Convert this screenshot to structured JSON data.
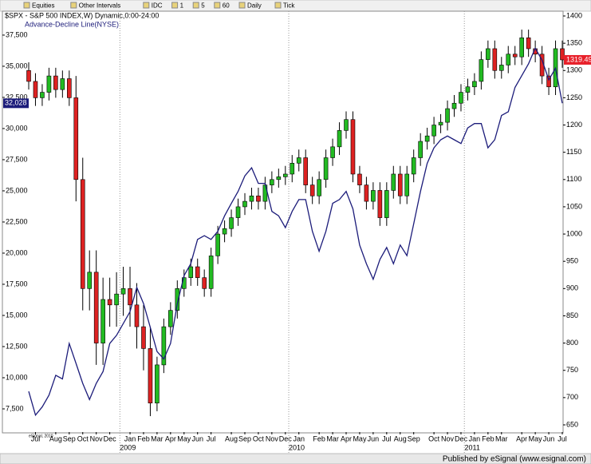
{
  "toolbar": {
    "items": [
      "Equities",
      "Other Intervals",
      "IDC",
      "1",
      "5",
      "60",
      "Daily",
      "Tick"
    ]
  },
  "footer": "Published by eSignal (www.esignal.com)",
  "watermark": "eSignal, 2010",
  "chart_data": {
    "type": "candlestick",
    "title": "$SPX - S&P 500 INDEX,W) Dynamic,0:00-24:00",
    "subtitle": "Advance-Decline Line(NYSE)",
    "categories": [
      null,
      "Jul",
      null,
      null,
      "Aug",
      null,
      "Sep",
      null,
      "Oct",
      null,
      "Nov",
      null,
      "Dec",
      null,
      null,
      "Jan",
      null,
      "Feb",
      null,
      "Mar",
      null,
      "Apr",
      null,
      "May",
      null,
      "Jun",
      null,
      "Jul",
      null,
      null,
      "Aug",
      null,
      "Sep",
      null,
      "Oct",
      null,
      "Nov",
      null,
      "Dec",
      null,
      "Jan",
      null,
      null,
      "Feb",
      null,
      "Mar",
      null,
      "Apr",
      null,
      "May",
      null,
      "Jun",
      null,
      "Jul",
      null,
      "Aug",
      null,
      "Sep",
      null,
      null,
      "Oct",
      null,
      "Nov",
      null,
      "Dec",
      null,
      "Jan",
      null,
      "Feb",
      null,
      "Mar",
      null,
      null,
      "Apr",
      null,
      "May",
      null,
      "Jun",
      null,
      "Jul"
    ],
    "years": [
      "2009",
      "2010",
      "2011"
    ],
    "ylim": [
      5640,
      39420
    ],
    "yticks": [
      {
        "value": 7500,
        "label": "7,500"
      },
      {
        "value": 10000,
        "label": "10,000"
      },
      {
        "value": 12500,
        "label": "12,500"
      },
      {
        "value": 15000,
        "label": "15,000"
      },
      {
        "value": 17500,
        "label": "17,500"
      },
      {
        "value": 20000,
        "label": "20,000"
      },
      {
        "value": 22500,
        "label": "22,500"
      },
      {
        "value": 25000,
        "label": "25,000"
      },
      {
        "value": 27500,
        "label": "27,500"
      },
      {
        "value": 30000,
        "label": "30,000"
      },
      {
        "value": 32500,
        "label": "32,500"
      },
      {
        "value": 35000,
        "label": "35,000"
      },
      {
        "value": 37500,
        "label": "37,500"
      }
    ],
    "y2lim": [
      636.8,
      1408.8
    ],
    "y2ticks": [
      650,
      700,
      750,
      800,
      850,
      900,
      950,
      1000,
      1050,
      1100,
      1150,
      1200,
      1250,
      1300,
      1350,
      1400
    ],
    "grid": false,
    "series": [
      {
        "name": "$SPX",
        "axis": "y2",
        "up_color": "#22bb22",
        "down_color": "#dd2222",
        "last_color": "#e8202a",
        "open": [
          1300,
          1280,
          1250,
          1260,
          1290,
          1265,
          1285,
          1250,
          1100,
          900,
          930,
          800,
          880,
          870,
          890,
          900,
          870,
          830,
          790,
          690,
          760,
          830,
          860,
          900,
          920,
          940,
          920,
          900,
          960,
          1000,
          1010,
          1030,
          1050,
          1060,
          1070,
          1060,
          1090,
          1100,
          1105,
          1110,
          1130,
          1140,
          1090,
          1070,
          1100,
          1140,
          1160,
          1190,
          1210,
          1110,
          1090,
          1060,
          1080,
          1030,
          1080,
          1110,
          1070,
          1110,
          1140,
          1170,
          1180,
          1200,
          1205,
          1230,
          1240,
          1260,
          1270,
          1280,
          1320,
          1340,
          1300,
          1310,
          1330,
          1325,
          1360,
          1340,
          1330,
          1290,
          1270,
          1340
        ],
        "high": [
          1315,
          1295,
          1275,
          1305,
          1305,
          1300,
          1300,
          1290,
          1140,
          970,
          970,
          920,
          920,
          930,
          940,
          940,
          910,
          870,
          830,
          775,
          845,
          875,
          915,
          935,
          955,
          955,
          935,
          975,
          1015,
          1025,
          1045,
          1065,
          1075,
          1085,
          1085,
          1105,
          1115,
          1120,
          1125,
          1145,
          1155,
          1155,
          1105,
          1115,
          1155,
          1175,
          1205,
          1225,
          1225,
          1125,
          1105,
          1095,
          1095,
          1095,
          1125,
          1125,
          1125,
          1155,
          1185,
          1195,
          1215,
          1220,
          1245,
          1255,
          1275,
          1285,
          1295,
          1335,
          1355,
          1355,
          1325,
          1345,
          1345,
          1375,
          1375,
          1355,
          1345,
          1305,
          1355,
          1355
        ],
        "low": [
          1265,
          1235,
          1235,
          1245,
          1250,
          1250,
          1235,
          1060,
          860,
          860,
          760,
          760,
          830,
          830,
          850,
          830,
          790,
          750,
          666,
          675,
          745,
          815,
          845,
          885,
          905,
          905,
          885,
          885,
          945,
          985,
          995,
          1015,
          1035,
          1045,
          1045,
          1045,
          1075,
          1085,
          1090,
          1095,
          1115,
          1075,
          1055,
          1055,
          1085,
          1125,
          1145,
          1175,
          1095,
          1075,
          1045,
          1045,
          1015,
          1015,
          1065,
          1055,
          1055,
          1095,
          1125,
          1155,
          1165,
          1185,
          1190,
          1215,
          1225,
          1245,
          1255,
          1265,
          1305,
          1285,
          1285,
          1295,
          1310,
          1310,
          1325,
          1315,
          1275,
          1255,
          1255,
          1305
        ],
        "close": [
          1280,
          1250,
          1260,
          1290,
          1265,
          1285,
          1250,
          1100,
          900,
          930,
          800,
          880,
          870,
          890,
          900,
          870,
          830,
          790,
          690,
          760,
          830,
          860,
          900,
          920,
          940,
          920,
          900,
          960,
          1000,
          1010,
          1030,
          1050,
          1060,
          1070,
          1060,
          1090,
          1100,
          1105,
          1110,
          1130,
          1140,
          1090,
          1070,
          1100,
          1140,
          1160,
          1190,
          1210,
          1110,
          1090,
          1060,
          1080,
          1030,
          1080,
          1110,
          1070,
          1110,
          1140,
          1170,
          1180,
          1200,
          1205,
          1230,
          1240,
          1260,
          1270,
          1280,
          1320,
          1340,
          1300,
          1310,
          1330,
          1325,
          1360,
          1340,
          1330,
          1290,
          1270,
          1340,
          1319.49
        ]
      },
      {
        "name": "Advance-Decline Line(NYSE)",
        "type": "line",
        "axis": "y",
        "color": "#1c1c7a",
        "values": [
          8900,
          7000,
          7650,
          8600,
          10200,
          9900,
          12750,
          11150,
          9550,
          8250,
          9550,
          10500,
          12750,
          13400,
          14350,
          15300,
          17250,
          15950,
          14050,
          12100,
          11500,
          12750,
          15950,
          18200,
          19150,
          21100,
          21400,
          21100,
          21750,
          23000,
          24000,
          24950,
          26200,
          26850,
          25600,
          25600,
          23350,
          23000,
          22050,
          23350,
          24300,
          24300,
          21750,
          20150,
          21750,
          24000,
          24300,
          24950,
          23550,
          20650,
          19150,
          17900,
          19500,
          20450,
          19150,
          20650,
          19800,
          22350,
          24950,
          27200,
          28450,
          29100,
          29400,
          29100,
          28800,
          30050,
          30400,
          30400,
          28450,
          29100,
          31050,
          31350,
          33300,
          34250,
          35200,
          36450,
          35500,
          33900,
          34850,
          32028
        ],
        "last_label": {
          "value": 32028,
          "label": "32,028"
        }
      }
    ]
  }
}
